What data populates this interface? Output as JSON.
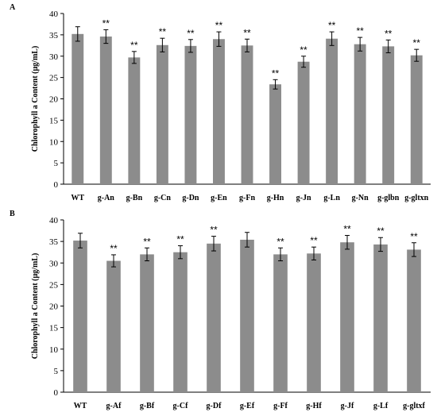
{
  "chart_data": [
    {
      "type": "bar",
      "panel_label": "A",
      "ylabel": "Chlorophyll a Content (μg/mL)",
      "ylim": [
        0,
        40
      ],
      "yticks": [
        0,
        5,
        10,
        15,
        20,
        25,
        30,
        35,
        40
      ],
      "categories": [
        "WT",
        "g-An",
        "g-Bn",
        "g-Cn",
        "g-Dn",
        "g-En",
        "g-Fn",
        "g-Hn",
        "g-Jn",
        "g-Ln",
        "g-Nn",
        "g-glbn",
        "g-gltxn"
      ],
      "values": [
        35.2,
        34.6,
        29.7,
        32.6,
        32.4,
        34.0,
        32.5,
        23.4,
        28.7,
        34.1,
        32.8,
        32.3,
        30.2
      ],
      "errors": [
        1.7,
        1.6,
        1.4,
        1.6,
        1.5,
        1.7,
        1.5,
        1.1,
        1.3,
        1.6,
        1.6,
        1.5,
        1.4
      ],
      "significance": [
        "",
        "**",
        "**",
        "**",
        "**",
        "**",
        "**",
        "**",
        "**",
        "**",
        "**",
        "**",
        "**"
      ],
      "colors": {
        "bar": "#8c8c8c"
      }
    },
    {
      "type": "bar",
      "panel_label": "B",
      "ylabel": "Chlorophyll a Content (μg/mL)",
      "ylim": [
        0,
        40
      ],
      "yticks": [
        0,
        5,
        10,
        15,
        20,
        25,
        30,
        35,
        40
      ],
      "categories": [
        "WT",
        "g-Af",
        "g-Bf",
        "g-Cf",
        "g-Df",
        "g-Ef",
        "g-Ff",
        "g-Hf",
        "g-Jf",
        "g-Lf",
        "g-gltxf"
      ],
      "values": [
        35.2,
        30.5,
        32.0,
        32.5,
        34.5,
        35.4,
        32.0,
        32.2,
        34.8,
        34.3,
        33.1
      ],
      "errors": [
        1.7,
        1.4,
        1.5,
        1.5,
        1.7,
        1.7,
        1.5,
        1.5,
        1.6,
        1.6,
        1.6
      ],
      "significance": [
        "",
        "**",
        "**",
        "**",
        "**",
        "",
        "**",
        "**",
        "**",
        "**",
        "**"
      ],
      "colors": {
        "bar": "#8c8c8c"
      }
    }
  ]
}
